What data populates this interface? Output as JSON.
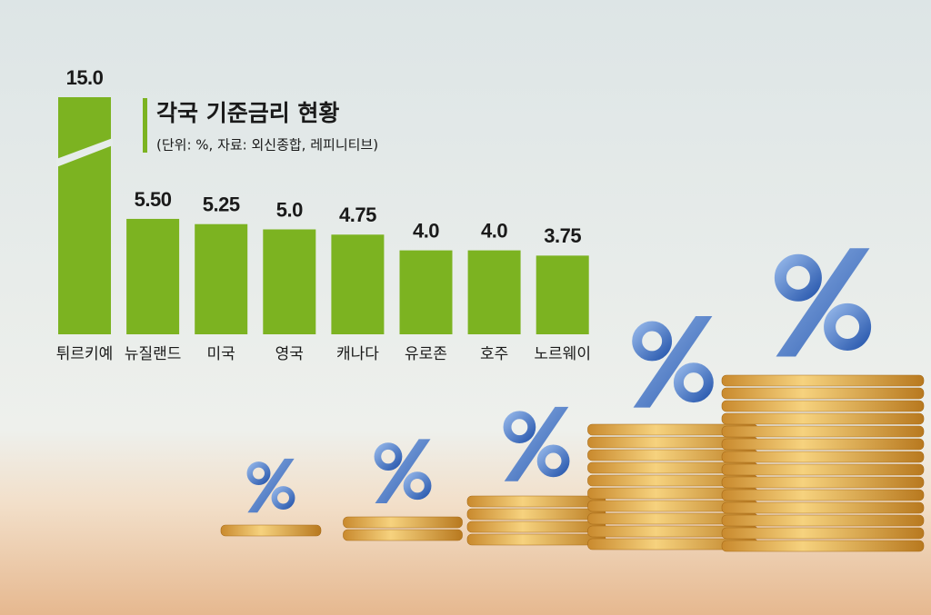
{
  "chart_data": {
    "type": "bar",
    "title": "각국 기준금리 현황",
    "subtitle": "(단위: %, 자료: 외신종합, 레피니티브)",
    "categories": [
      "튀르키예",
      "뉴질랜드",
      "미국",
      "영국",
      "캐나다",
      "유로존",
      "호주",
      "노르웨이"
    ],
    "values": [
      15,
      5.5,
      5.25,
      5,
      4.75,
      4,
      4,
      3.75
    ],
    "value_labels": [
      "15.0",
      "5.50",
      "5.25",
      "5.0",
      "4.75",
      "4.0",
      "4.0",
      "3.75"
    ],
    "color": "#7cb321",
    "ylim": [
      0,
      6
    ]
  }
}
